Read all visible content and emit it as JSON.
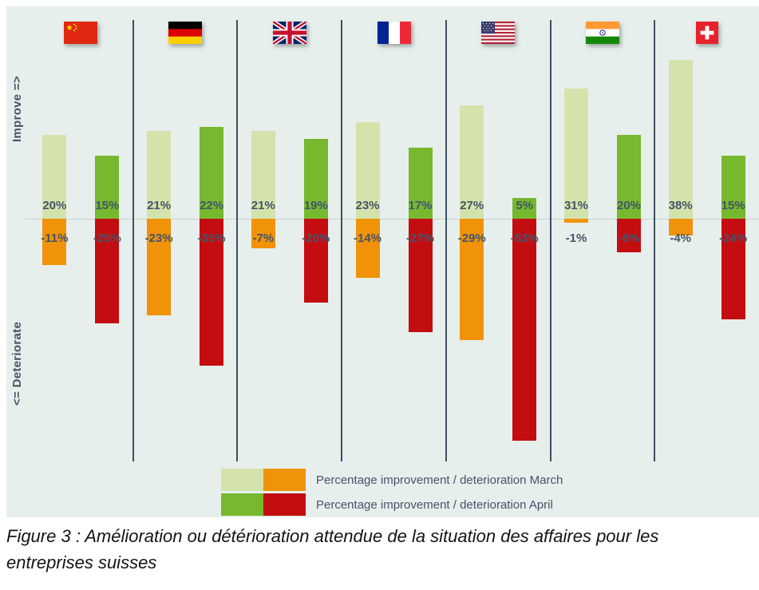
{
  "chart_data": {
    "type": "bar",
    "orientation": "diverging-vertical",
    "categories": [
      "China",
      "Germany",
      "United Kingdom",
      "France",
      "United States",
      "India",
      "Switzerland"
    ],
    "flags": [
      "china",
      "germany",
      "uk",
      "france",
      "usa",
      "india",
      "switzerland"
    ],
    "series": [
      {
        "name": "Percentage improvement March",
        "color": "#d3e3ab",
        "values": [
          20,
          21,
          21,
          23,
          27,
          31,
          38
        ]
      },
      {
        "name": "Percentage deterioration March",
        "color": "#f0930a",
        "values": [
          -11,
          -23,
          -7,
          -14,
          -29,
          -1,
          -4
        ]
      },
      {
        "name": "Percentage improvement April",
        "color": "#76b82e",
        "values": [
          15,
          22,
          19,
          17,
          5,
          20,
          15
        ]
      },
      {
        "name": "Percentage deterioration April",
        "color": "#c40d11",
        "values": [
          -25,
          -35,
          -20,
          -27,
          -53,
          -8,
          -24
        ]
      }
    ],
    "value_suffix": "%",
    "baseline": 0,
    "ylim": [
      -60,
      45
    ],
    "grid": false,
    "legend_position": "bottom",
    "axis_annotations": {
      "improve": "Improve =>",
      "deteriorate": "<= Deteriorate"
    },
    "legend": [
      {
        "swatches": [
          "#d3e3ab",
          "#f0930a"
        ],
        "label": "Percentage improvement / deterioration March"
      },
      {
        "swatches": [
          "#76b82e",
          "#c40d11"
        ],
        "label": "Percentage improvement / deterioration April"
      }
    ]
  },
  "caption": "Figure 3 : Amélioration ou détérioration attendue de la situation des affaires pour les entreprises suisses",
  "colors": {
    "panel_bg": "#e7efec",
    "separator": "#3f4f63",
    "zero_line": "#c7d1cd",
    "value_label": "#44546a"
  }
}
